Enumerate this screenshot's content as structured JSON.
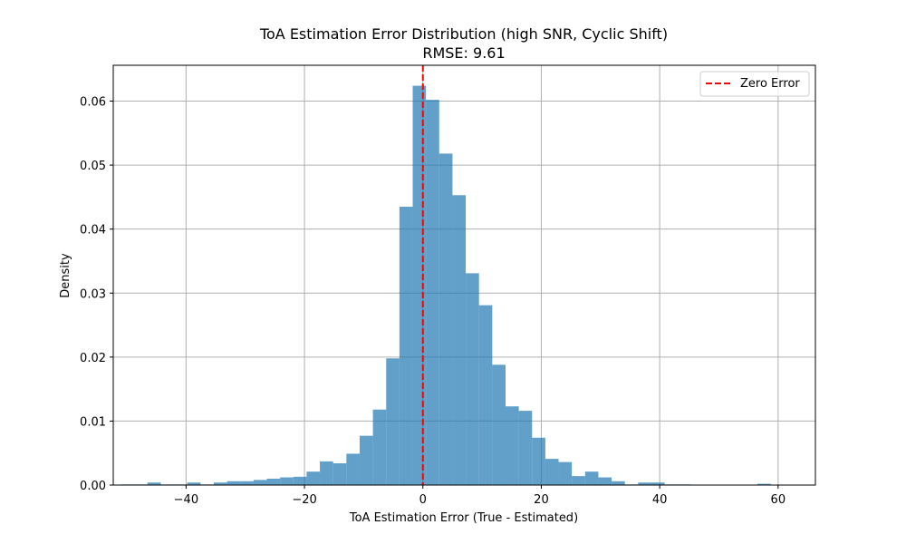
{
  "chart_data": {
    "type": "bar",
    "title_line1": "ToA Estimation Error Distribution (high SNR, Cyclic Shift)",
    "title_line2": "RMSE: 9.61",
    "xlabel": "ToA Estimation Error (True - Estimated)",
    "ylabel": "Density",
    "xlim": [
      -52.3,
      66.3
    ],
    "ylim": [
      0,
      0.0656
    ],
    "grid": true,
    "legend": {
      "placement": "top-right",
      "entries": [
        "Zero Error"
      ]
    },
    "x_ticks": [
      -40,
      -20,
      0,
      20,
      40,
      60
    ],
    "x_tick_labels": [
      "−40",
      "−20",
      "0",
      "20",
      "40",
      "60"
    ],
    "y_ticks": [
      0.0,
      0.01,
      0.02,
      0.03,
      0.04,
      0.05,
      0.06
    ],
    "y_tick_labels": [
      "0.00",
      "0.01",
      "0.02",
      "0.03",
      "0.04",
      "0.05",
      "0.06"
    ],
    "bins": {
      "edges_start": -51,
      "bin_width": 2.24,
      "densities": [
        0.0001,
        0.0001,
        0.0004,
        0.0001,
        0.0001,
        0.0004,
        0.0001,
        0.0004,
        0.0006,
        0.0006,
        0.0008,
        0.001,
        0.0012,
        0.0013,
        0.0021,
        0.0037,
        0.0034,
        0.0049,
        0.0077,
        0.0118,
        0.0198,
        0.0435,
        0.0624,
        0.0602,
        0.0518,
        0.0453,
        0.0331,
        0.0281,
        0.0188,
        0.0123,
        0.0116,
        0.0074,
        0.0041,
        0.0036,
        0.0014,
        0.0021,
        0.0012,
        0.0006,
        0.0001,
        0.0004,
        0.0004,
        0.0001,
        0.0001,
        0.0,
        0.0,
        0.0,
        0.0,
        0.0,
        0.0002,
        0.0
      ]
    },
    "reference_line": {
      "x": 0,
      "label": "Zero Error",
      "color": "#ff0000",
      "style": "dashed"
    },
    "bar_color": "#1f77b4",
    "bar_alpha": 0.7
  }
}
